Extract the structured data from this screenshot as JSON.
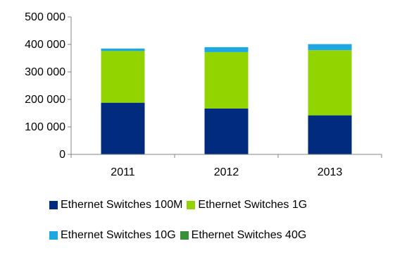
{
  "chart_data": {
    "type": "bar",
    "stacked": true,
    "categories": [
      "2011",
      "2012",
      "2013"
    ],
    "series": [
      {
        "name": "Ethernet Switches 100M",
        "color": "#002b7f",
        "values": [
          188000,
          167000,
          142000
        ]
      },
      {
        "name": "Ethernet Switches 1G",
        "color": "#92d400",
        "values": [
          188000,
          205000,
          237000
        ]
      },
      {
        "name": "Ethernet Switches 10G",
        "color": "#1ea7e1",
        "values": [
          9000,
          18000,
          22000
        ]
      },
      {
        "name": "Ethernet Switches 40G",
        "color": "#3a8f3a",
        "values": [
          0,
          0,
          0
        ]
      }
    ],
    "ylim": [
      0,
      500000
    ],
    "yticks": [
      0,
      100000,
      200000,
      300000,
      400000,
      500000
    ],
    "ytick_labels": [
      "0",
      "100 000",
      "200 000",
      "300 000",
      "400 000",
      "500 000"
    ],
    "grid": false,
    "legend_position": "bottom"
  }
}
